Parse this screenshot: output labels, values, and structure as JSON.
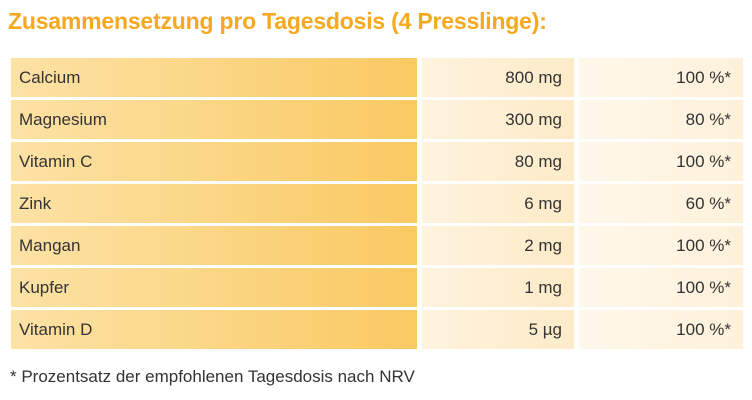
{
  "title": "Zusammensetzung pro Tagesdosis (4 Presslinge):",
  "table": {
    "rows": [
      [
        "Calcium",
        "800 mg",
        "100 %*"
      ],
      [
        "Magnesium",
        "300 mg",
        "80 %*"
      ],
      [
        "Vitamin C",
        "80 mg",
        "100 %*"
      ],
      [
        "Zink",
        "6 mg",
        "60 %*"
      ],
      [
        "Mangan",
        "2 mg",
        "100 %*"
      ],
      [
        "Kupfer",
        "1 mg",
        "100 %*"
      ],
      [
        "Vitamin D",
        "5 µg",
        "100 %*"
      ]
    ]
  },
  "footnote": "* Prozentsatz der empfohlenen Tagesdosis nach NRV"
}
